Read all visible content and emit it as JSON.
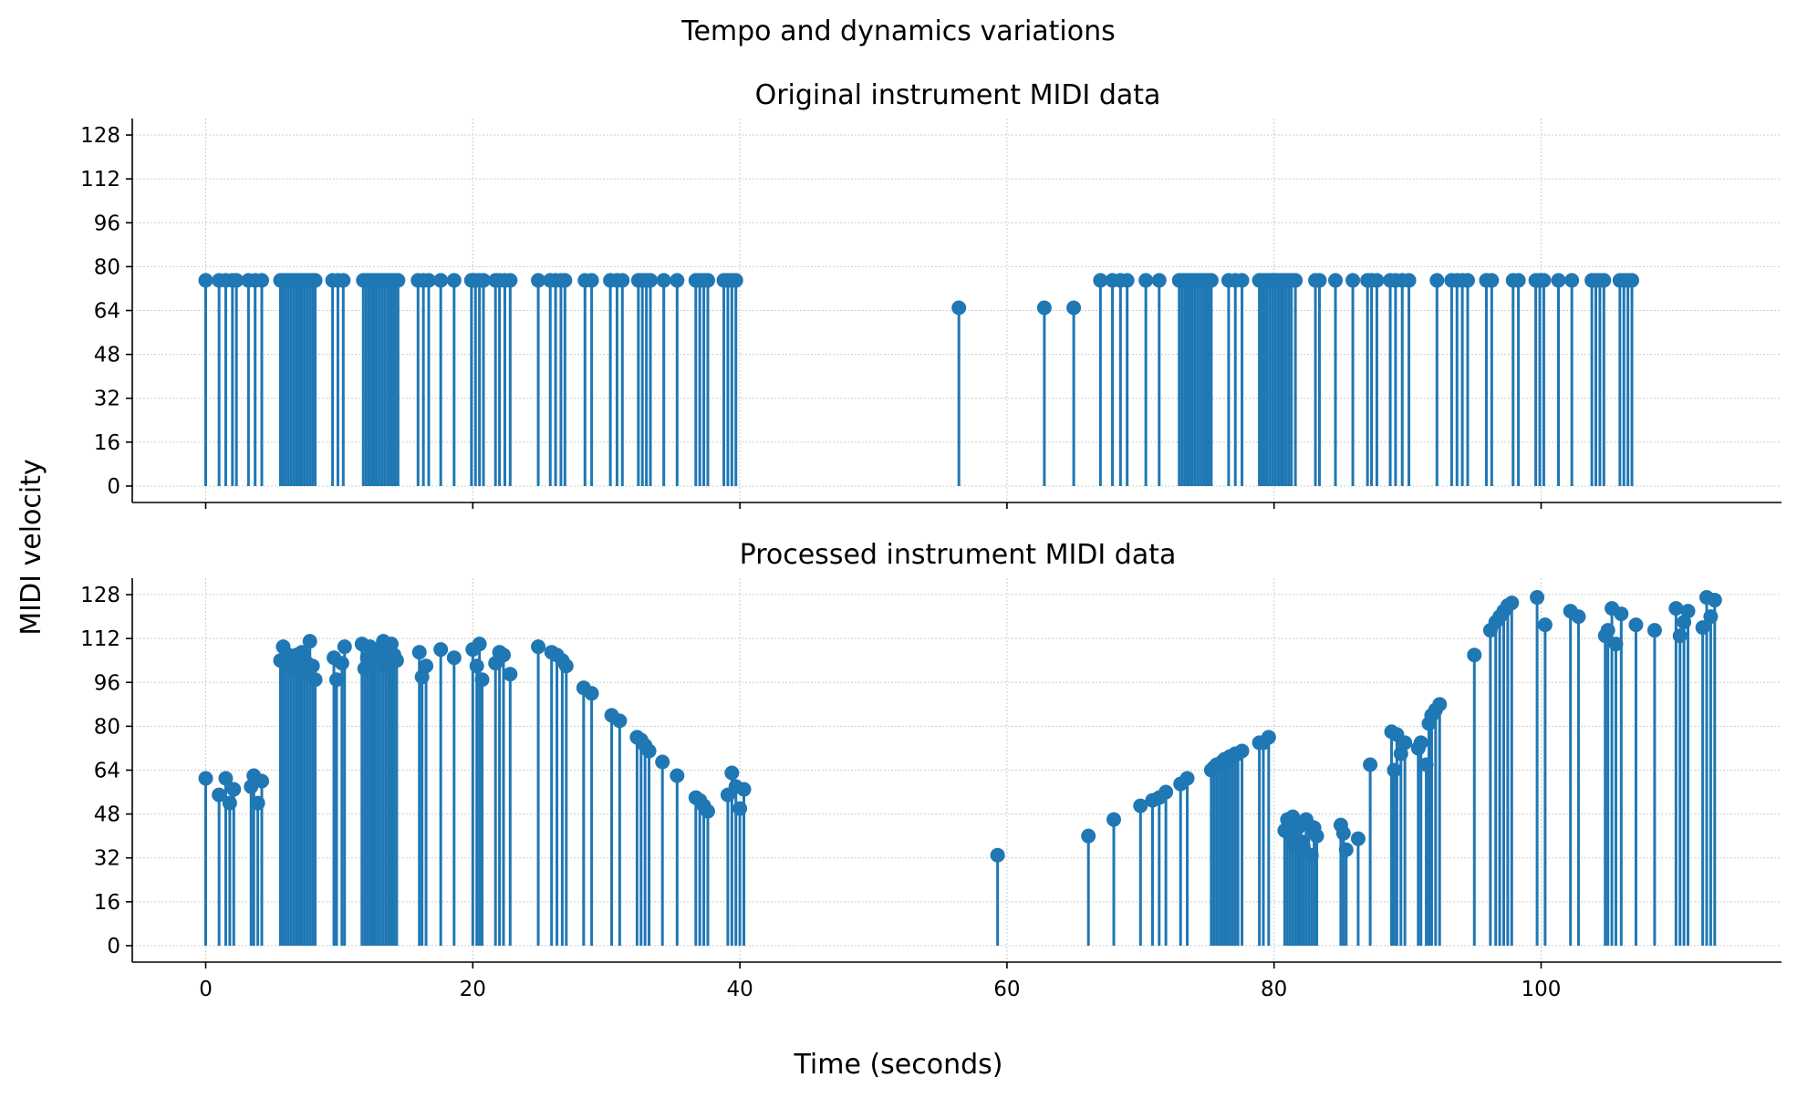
{
  "figure": {
    "suptitle": "Tempo and dynamics variations",
    "xlabel": "Time (seconds)",
    "ylabel": "MIDI velocity"
  },
  "chart_data": [
    {
      "type": "stem",
      "title": "Original instrument MIDI data",
      "xlim": [
        -5.5,
        118
      ],
      "ylim": [
        -6,
        134
      ],
      "xticks": [
        0,
        20,
        40,
        60,
        80,
        100
      ],
      "yticks": [
        0,
        16,
        32,
        48,
        64,
        80,
        96,
        112,
        128
      ],
      "ytick_labels": [
        "0",
        "16",
        "32",
        "48",
        "64",
        "80",
        "96",
        "112",
        "128"
      ],
      "show_xtick_labels": false,
      "grid": true,
      "color": "#1f77b4",
      "series": [
        {
          "x": [
            0,
            1,
            1.5,
            2,
            2.3,
            3.2,
            3.7,
            4.2,
            5.6,
            5.8,
            6.0,
            6.2,
            6.4,
            6.6,
            6.8,
            7.0,
            7.2,
            7.4,
            7.6,
            7.8,
            8.0,
            8.2,
            9.5,
            9.9,
            10.3,
            11.8,
            12.0,
            12.2,
            12.4,
            12.6,
            12.8,
            13.0,
            13.2,
            13.4,
            13.6,
            13.8,
            14.0,
            14.2,
            14.4,
            15.9,
            16.3,
            16.7,
            17.6,
            18.6,
            19.9,
            20.2,
            20.5,
            20.8,
            21.7,
            22.0,
            22.4,
            22.8,
            24.9,
            25.8,
            26.2,
            26.6,
            26.9,
            28.4,
            28.9,
            30.3,
            30.8,
            31.2,
            32.4,
            32.7,
            33.0,
            33.3,
            34.3,
            35.3,
            36.7,
            37.0,
            37.3,
            37.6,
            38.8,
            39.1,
            39.4,
            39.7,
            56.4,
            62.8,
            65.0,
            67.0,
            67.9,
            68.5,
            69.0,
            70.4,
            71.4,
            72.9,
            73.1,
            73.3,
            73.5,
            73.7,
            73.9,
            74.1,
            74.3,
            74.5,
            74.7,
            74.9,
            75.1,
            75.3,
            76.6,
            77.1,
            77.6,
            78.9,
            79.1,
            79.3,
            79.5,
            79.7,
            79.9,
            80.1,
            80.3,
            80.5,
            80.7,
            80.9,
            81.1,
            81.3,
            81.6,
            83.1,
            83.4,
            84.6,
            85.9,
            87.0,
            87.3,
            87.7,
            88.7,
            89.1,
            89.6,
            90.1,
            92.2,
            93.3,
            93.7,
            94.1,
            94.5,
            95.9,
            96.3,
            97.9,
            98.3,
            99.6,
            99.9,
            100.2,
            101.3,
            102.3,
            103.8,
            104.1,
            104.4,
            104.7,
            105.9,
            106.2,
            106.5,
            106.8
          ],
          "y": [
            75,
            75,
            75,
            75,
            75,
            75,
            75,
            75,
            75,
            75,
            75,
            75,
            75,
            75,
            75,
            75,
            75,
            75,
            75,
            75,
            75,
            75,
            75,
            75,
            75,
            75,
            75,
            75,
            75,
            75,
            75,
            75,
            75,
            75,
            75,
            75,
            75,
            75,
            75,
            75,
            75,
            75,
            75,
            75,
            75,
            75,
            75,
            75,
            75,
            75,
            75,
            75,
            75,
            75,
            75,
            75,
            75,
            75,
            75,
            75,
            75,
            75,
            75,
            75,
            75,
            75,
            75,
            75,
            75,
            75,
            75,
            75,
            75,
            75,
            75,
            75,
            65,
            65,
            65,
            75,
            75,
            75,
            75,
            75,
            75,
            75,
            75,
            75,
            75,
            75,
            75,
            75,
            75,
            75,
            75,
            75,
            75,
            75,
            75,
            75,
            75,
            75,
            75,
            75,
            75,
            75,
            75,
            75,
            75,
            75,
            75,
            75,
            75,
            75,
            75,
            75,
            75,
            75,
            75,
            75,
            75,
            75,
            75,
            75,
            75,
            75,
            75,
            75,
            75,
            75,
            75,
            75,
            75,
            75,
            75,
            75,
            75,
            75,
            75,
            75,
            75,
            75,
            75,
            75,
            75,
            75,
            75,
            75
          ]
        }
      ]
    },
    {
      "type": "stem",
      "title": "Processed instrument MIDI data",
      "xlim": [
        -5.5,
        118
      ],
      "ylim": [
        -6,
        134
      ],
      "xticks": [
        0,
        20,
        40,
        60,
        80,
        100
      ],
      "xtick_labels": [
        "0",
        "20",
        "40",
        "60",
        "80",
        "100"
      ],
      "yticks": [
        0,
        16,
        32,
        48,
        64,
        80,
        96,
        112,
        128
      ],
      "ytick_labels": [
        "0",
        "16",
        "32",
        "48",
        "64",
        "80",
        "96",
        "112",
        "128"
      ],
      "show_xtick_labels": true,
      "grid": true,
      "color": "#1f77b4",
      "series": [
        {
          "x": [
            0,
            1,
            1.5,
            1.8,
            2.1,
            3.4,
            3.6,
            3.9,
            4.2,
            5.6,
            5.8,
            6.0,
            6.2,
            6.4,
            6.6,
            6.8,
            7.0,
            7.2,
            7.4,
            7.6,
            7.8,
            8.0,
            8.2,
            9.6,
            9.8,
            10.2,
            10.4,
            11.7,
            11.9,
            12.1,
            12.3,
            12.5,
            12.7,
            12.9,
            13.1,
            13.3,
            13.5,
            13.7,
            13.9,
            14.1,
            14.3,
            16.0,
            16.2,
            16.5,
            17.6,
            18.6,
            20.0,
            20.3,
            20.5,
            20.7,
            21.7,
            22.0,
            22.3,
            22.8,
            24.9,
            25.9,
            26.3,
            26.7,
            27.0,
            28.3,
            28.9,
            30.4,
            31.0,
            32.3,
            32.6,
            32.9,
            33.2,
            34.2,
            35.3,
            36.7,
            37.0,
            37.3,
            37.6,
            39.1,
            39.4,
            39.7,
            40.0,
            40.3,
            59.3,
            66.1,
            68.0,
            70.0,
            70.9,
            71.4,
            71.9,
            73.0,
            73.5,
            75.3,
            75.5,
            75.7,
            75.9,
            76.1,
            76.3,
            76.5,
            76.7,
            76.9,
            77.1,
            77.3,
            77.6,
            78.9,
            79.2,
            79.6,
            80.8,
            81.0,
            81.2,
            81.4,
            81.6,
            81.8,
            82.0,
            82.2,
            82.4,
            82.6,
            82.8,
            83.0,
            83.2,
            85.0,
            85.2,
            85.4,
            86.3,
            87.2,
            88.8,
            89.0,
            89.2,
            89.5,
            89.8,
            90.8,
            91.0,
            91.4,
            91.6,
            91.8,
            92.1,
            92.4,
            95.0,
            96.2,
            96.6,
            96.9,
            97.2,
            97.5,
            97.8,
            99.7,
            100.3,
            102.2,
            102.8,
            104.8,
            105.0,
            105.3,
            105.6,
            106.0,
            107.1,
            108.5,
            110.1,
            110.4,
            110.7,
            111.0,
            112.1,
            112.4,
            112.7,
            113.0
          ],
          "y": [
            61,
            55,
            61,
            52,
            57,
            58,
            62,
            52,
            60,
            104,
            109,
            103,
            106,
            101,
            104,
            106,
            102,
            107,
            100,
            103,
            111,
            102,
            97,
            105,
            97,
            103,
            109,
            110,
            101,
            105,
            109,
            104,
            106,
            108,
            104,
            111,
            102,
            107,
            110,
            106,
            104,
            107,
            98,
            102,
            108,
            105,
            108,
            102,
            110,
            97,
            103,
            107,
            106,
            99,
            109,
            107,
            106,
            104,
            102,
            94,
            92,
            84,
            82,
            76,
            75,
            73,
            71,
            67,
            62,
            54,
            53,
            51,
            49,
            55,
            63,
            58,
            50,
            57,
            33,
            40,
            46,
            51,
            53,
            54,
            56,
            59,
            61,
            64,
            65,
            66,
            66,
            67,
            68,
            68,
            69,
            69,
            70,
            70,
            71,
            74,
            74,
            76,
            42,
            46,
            40,
            47,
            37,
            43,
            38,
            36,
            46,
            44,
            33,
            43,
            40,
            44,
            41,
            35,
            39,
            66,
            78,
            64,
            77,
            70,
            74,
            72,
            74,
            66,
            81,
            84,
            86,
            88,
            106,
            115,
            118,
            120,
            122,
            124,
            125,
            127,
            117,
            122,
            120,
            113,
            115,
            123,
            110,
            121,
            117,
            115,
            123,
            113,
            118,
            122,
            116,
            127,
            120,
            126
          ]
        }
      ]
    }
  ]
}
